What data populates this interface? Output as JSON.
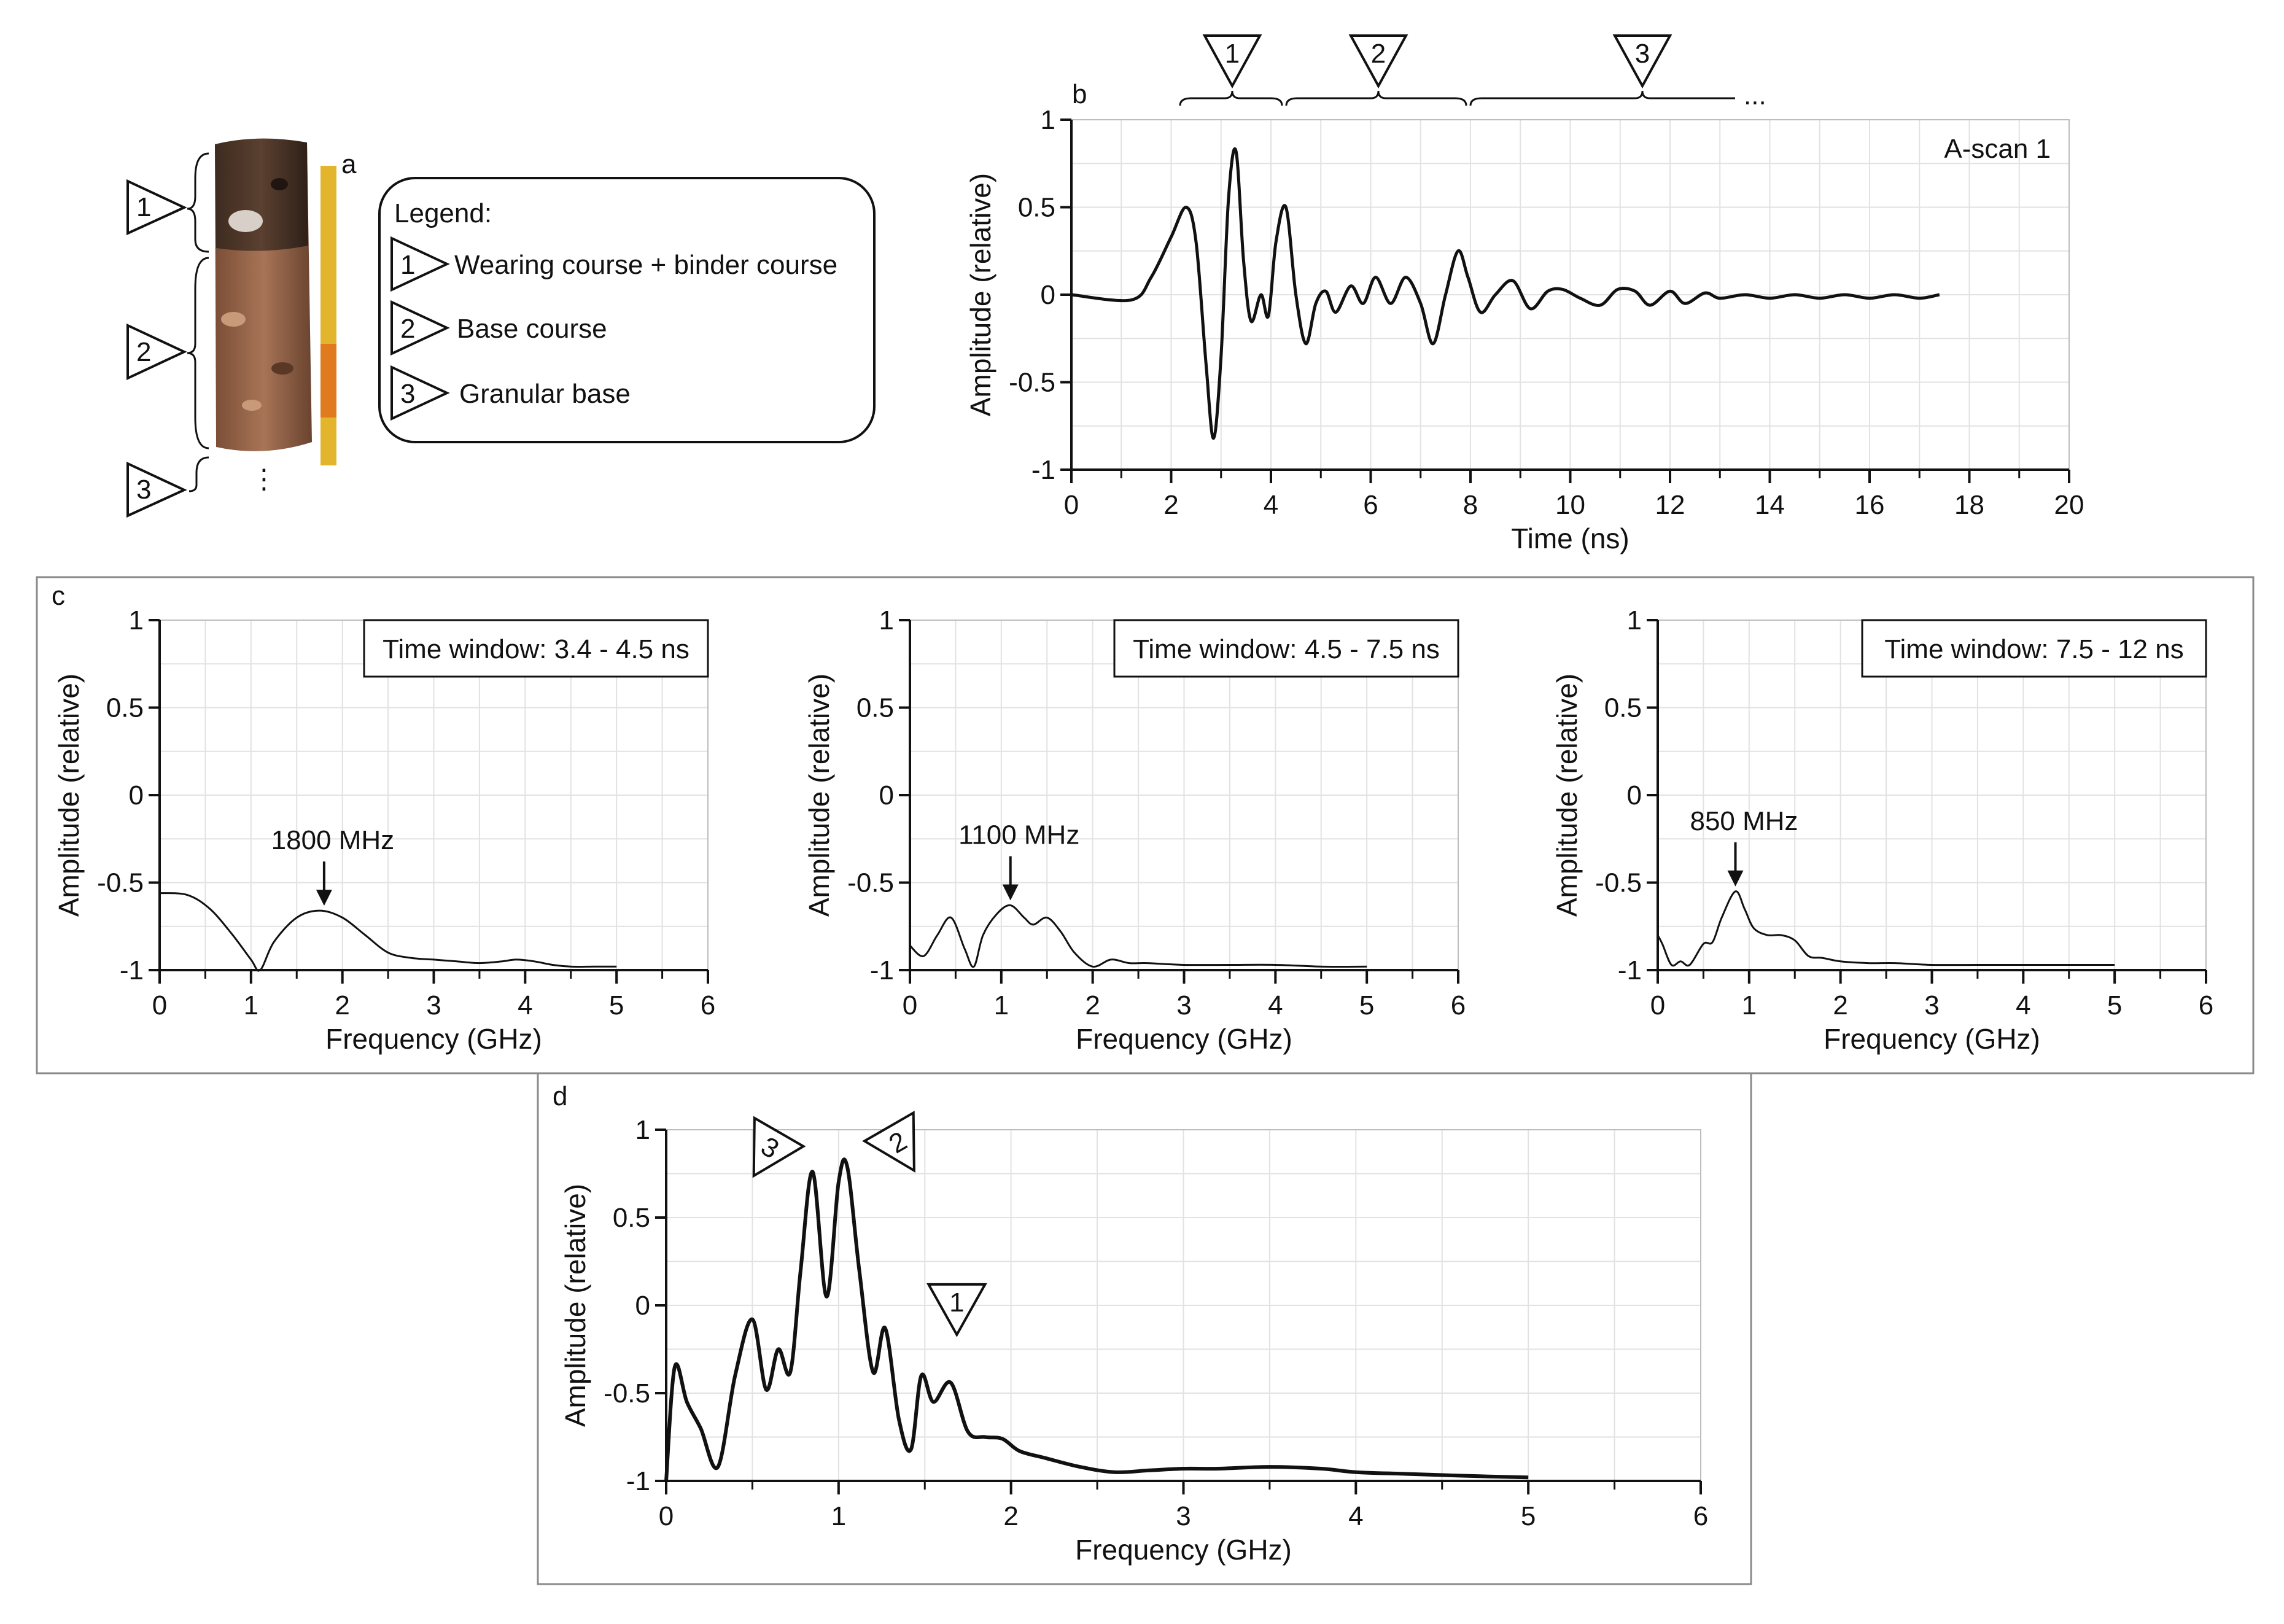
{
  "panel_labels": {
    "a": "a",
    "b": "b",
    "c": "c",
    "d": "d"
  },
  "core_markers": [
    "1",
    "2",
    "3"
  ],
  "core_ellipsis": "⋮",
  "legend": {
    "title": "Legend:",
    "items": [
      {
        "marker": "1",
        "text": "Wearing course + binder course"
      },
      {
        "marker": "2",
        "text": "Base course"
      },
      {
        "marker": "3",
        "text": "Granular base"
      }
    ]
  },
  "time_markers": [
    "1",
    "2",
    "3"
  ],
  "time_ellipsis": "...",
  "colors": {
    "line": "#111111",
    "grid": "#e2e2e2",
    "core_dark": "#4a3526",
    "core_light": "#9c6a4e",
    "ruler": "#e3b52c"
  },
  "chart_data": [
    {
      "id": "b",
      "type": "line",
      "annotation": "A-scan 1",
      "xlabel": "Time (ns)",
      "ylabel": "Amplitude (relative)",
      "xlim": [
        0,
        20
      ],
      "ylim": [
        -1,
        1
      ],
      "xticks": [
        "0",
        "2",
        "4",
        "6",
        "8",
        "10",
        "12",
        "14",
        "16",
        "18",
        "20"
      ],
      "yticks": [
        "1",
        "0.5",
        "0",
        "-0.5",
        "-1"
      ],
      "series": [
        {
          "x": [
            0,
            1.2,
            1.6,
            2.0,
            2.3,
            2.5,
            2.7,
            2.85,
            3.0,
            3.15,
            3.3,
            3.45,
            3.6,
            3.8,
            3.95,
            4.1,
            4.3,
            4.5,
            4.7,
            4.9,
            5.1,
            5.3,
            5.6,
            5.85,
            6.1,
            6.4,
            6.7,
            7.0,
            7.25,
            7.5,
            7.75,
            7.95,
            8.2,
            8.5,
            8.85,
            9.2,
            9.55,
            9.85,
            10.2,
            10.6,
            10.95,
            11.3,
            11.6,
            12.0,
            12.3,
            12.7,
            13.0,
            13.5,
            14.0,
            14.5,
            15.0,
            15.5,
            16.0,
            16.5,
            17.0,
            17.4
          ],
          "y": [
            0,
            -0.03,
            0.1,
            0.33,
            0.5,
            0.3,
            -0.4,
            -0.82,
            -0.35,
            0.55,
            0.82,
            0.2,
            -0.15,
            0.0,
            -0.12,
            0.3,
            0.5,
            0.0,
            -0.28,
            -0.05,
            0.02,
            -0.1,
            0.05,
            -0.05,
            0.1,
            -0.05,
            0.1,
            -0.05,
            -0.28,
            0.0,
            0.25,
            0.1,
            -0.1,
            0.0,
            0.08,
            -0.08,
            0.02,
            0.03,
            -0.02,
            -0.06,
            0.03,
            0.02,
            -0.06,
            0.02,
            -0.05,
            0.01,
            -0.02,
            0.0,
            -0.02,
            0.0,
            -0.02,
            0.0,
            -0.02,
            0.0,
            -0.02,
            0.0
          ]
        }
      ]
    },
    {
      "id": "c1",
      "type": "line",
      "annotation": "Time window: 3.4 - 4.5 ns",
      "peak_label": "1800 MHz",
      "peak": [
        1.8,
        -0.66
      ],
      "xlabel": "Frequency (GHz)",
      "ylabel": "Amplitude (relative)",
      "xlim": [
        0,
        6
      ],
      "ylim": [
        -1,
        1
      ],
      "xticks": [
        "0",
        "1",
        "2",
        "3",
        "4",
        "5",
        "6"
      ],
      "yticks": [
        "1",
        "0.5",
        "0",
        "-0.5",
        "-1"
      ],
      "series": [
        {
          "x": [
            0,
            0.3,
            0.55,
            0.8,
            1.0,
            1.1,
            1.25,
            1.5,
            1.75,
            2.0,
            2.25,
            2.5,
            2.75,
            3.0,
            3.25,
            3.5,
            3.75,
            3.9,
            4.1,
            4.3,
            4.5,
            4.75,
            5.0
          ],
          "y": [
            -0.56,
            -0.57,
            -0.65,
            -0.8,
            -0.94,
            -1.0,
            -0.84,
            -0.7,
            -0.66,
            -0.7,
            -0.8,
            -0.9,
            -0.93,
            -0.94,
            -0.95,
            -0.96,
            -0.95,
            -0.94,
            -0.95,
            -0.97,
            -0.98,
            -0.98,
            -0.98
          ]
        }
      ]
    },
    {
      "id": "c2",
      "type": "line",
      "annotation": "Time window: 4.5 - 7.5 ns",
      "peak_label": "1100 MHz",
      "peak": [
        1.1,
        -0.63
      ],
      "xlabel": "Frequency (GHz)",
      "ylabel": "Amplitude (relative)",
      "xlim": [
        0,
        6
      ],
      "ylim": [
        -1,
        1
      ],
      "xticks": [
        "0",
        "1",
        "2",
        "3",
        "4",
        "5",
        "6"
      ],
      "yticks": [
        "1",
        "0.5",
        "0",
        "-0.5",
        "-1"
      ],
      "series": [
        {
          "x": [
            0,
            0.15,
            0.3,
            0.45,
            0.6,
            0.7,
            0.8,
            0.95,
            1.1,
            1.25,
            1.35,
            1.5,
            1.65,
            1.8,
            2.0,
            2.2,
            2.4,
            2.6,
            3.0,
            3.5,
            4.0,
            4.5,
            5.0
          ],
          "y": [
            -0.86,
            -0.92,
            -0.8,
            -0.7,
            -0.88,
            -0.98,
            -0.8,
            -0.68,
            -0.63,
            -0.7,
            -0.74,
            -0.7,
            -0.78,
            -0.9,
            -0.98,
            -0.94,
            -0.96,
            -0.96,
            -0.97,
            -0.97,
            -0.97,
            -0.98,
            -0.98
          ]
        }
      ]
    },
    {
      "id": "c3",
      "type": "line",
      "annotation": "Time window: 7.5 - 12 ns",
      "peak_label": "850 MHz",
      "peak": [
        0.85,
        -0.55
      ],
      "xlabel": "Frequency (GHz)",
      "ylabel": "Amplitude (relative)",
      "xlim": [
        0,
        6
      ],
      "ylim": [
        -1,
        1
      ],
      "xticks": [
        "0",
        "1",
        "2",
        "3",
        "4",
        "5",
        "6"
      ],
      "yticks": [
        "1",
        "0.5",
        "0",
        "-0.5",
        "-1"
      ],
      "series": [
        {
          "x": [
            0,
            0.05,
            0.15,
            0.25,
            0.35,
            0.5,
            0.6,
            0.7,
            0.85,
            0.95,
            1.05,
            1.2,
            1.35,
            1.5,
            1.65,
            1.8,
            2.0,
            2.3,
            2.6,
            3.0,
            3.5,
            4.0,
            4.5,
            5.0
          ],
          "y": [
            -0.8,
            -0.85,
            -0.97,
            -0.95,
            -0.97,
            -0.85,
            -0.84,
            -0.7,
            -0.55,
            -0.65,
            -0.76,
            -0.8,
            -0.8,
            -0.83,
            -0.92,
            -0.93,
            -0.95,
            -0.96,
            -0.96,
            -0.97,
            -0.97,
            -0.97,
            -0.97,
            -0.97
          ]
        }
      ]
    },
    {
      "id": "d",
      "type": "line",
      "markers": [
        {
          "label": "3",
          "x": 0.85,
          "y": 0.76
        },
        {
          "label": "2",
          "x": 1.05,
          "y": 0.79
        },
        {
          "label": "1",
          "x": 1.65,
          "y": -0.44
        }
      ],
      "xlabel": "Frequency (GHz)",
      "ylabel": "Amplitude (relative)",
      "xlim": [
        0,
        6
      ],
      "ylim": [
        -1,
        1
      ],
      "xticks": [
        "0",
        "1",
        "2",
        "3",
        "4",
        "5",
        "6"
      ],
      "yticks": [
        "1",
        "0.5",
        "0",
        "-0.5",
        "-1"
      ],
      "series": [
        {
          "x": [
            0,
            0.05,
            0.12,
            0.2,
            0.3,
            0.4,
            0.5,
            0.58,
            0.65,
            0.72,
            0.78,
            0.85,
            0.93,
            1.0,
            1.05,
            1.12,
            1.2,
            1.27,
            1.35,
            1.42,
            1.48,
            1.55,
            1.65,
            1.75,
            1.85,
            1.95,
            2.05,
            2.2,
            2.4,
            2.6,
            2.8,
            3.0,
            3.2,
            3.5,
            3.8,
            4.0,
            4.3,
            4.6,
            5.0
          ],
          "y": [
            -1.0,
            -0.35,
            -0.55,
            -0.7,
            -0.92,
            -0.4,
            -0.08,
            -0.48,
            -0.25,
            -0.38,
            0.2,
            0.76,
            0.05,
            0.7,
            0.79,
            0.2,
            -0.38,
            -0.13,
            -0.65,
            -0.82,
            -0.4,
            -0.55,
            -0.44,
            -0.72,
            -0.75,
            -0.76,
            -0.83,
            -0.87,
            -0.92,
            -0.95,
            -0.94,
            -0.93,
            -0.93,
            -0.92,
            -0.93,
            -0.95,
            -0.96,
            -0.97,
            -0.98
          ]
        }
      ]
    }
  ]
}
